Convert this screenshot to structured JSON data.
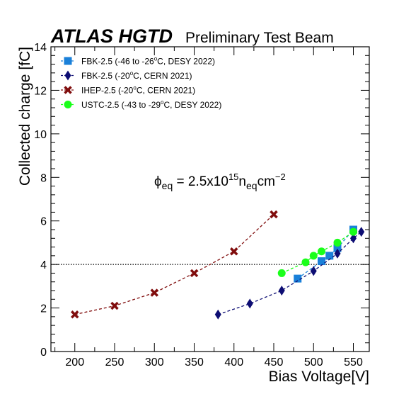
{
  "chart_data": {
    "type": "line",
    "title_bold": "ATLAS HGTD",
    "title_rest": "Preliminary Test Beam",
    "xlabel": "Bias Voltage[V]",
    "ylabel": "Collected charge [fC]",
    "xlim": [
      170,
      570
    ],
    "ylim": [
      0,
      14
    ],
    "x_ticks": [
      200,
      250,
      300,
      350,
      400,
      450,
      500,
      550
    ],
    "y_ticks": [
      0,
      2,
      4,
      6,
      8,
      10,
      12,
      14
    ],
    "reference_line": {
      "y": 4,
      "style": "dotted"
    },
    "annotation": {
      "symbol": "ϕ",
      "sub1": "eq",
      "mid": " = 2.5x10",
      "sup1": "15",
      "n": "n",
      "sub2": "eq",
      "unit": "cm",
      "sup2": "−2"
    },
    "legend_position": "top-left",
    "series": [
      {
        "name": "FBK-2.5 (-46 to -26°C, DESY 2022)",
        "name_parts": [
          "FBK-2.5 (-46 to -26",
          "o",
          "C, DESY 2022)"
        ],
        "marker": "square",
        "color": "#1a80d9",
        "x": [
          480,
          510,
          520,
          530,
          550
        ],
        "y": [
          3.35,
          4.15,
          4.4,
          4.75,
          5.6
        ]
      },
      {
        "name": "FBK-2.5 (-20°C, CERN 2021)",
        "name_parts": [
          "FBK-2.5 (-20",
          "o",
          "C, CERN 2021)"
        ],
        "marker": "diamond",
        "color": "#0d0d73",
        "x": [
          380,
          420,
          460,
          500,
          530,
          550,
          560
        ],
        "y": [
          1.7,
          2.2,
          2.8,
          3.7,
          4.5,
          5.2,
          5.5
        ]
      },
      {
        "name": "IHEP-2.5 (-20°C, CERN 2021)",
        "name_parts": [
          "IHEP-2.5 (-20",
          "o",
          "C, CERN 2021)"
        ],
        "marker": "cross",
        "color": "#800d0d",
        "x": [
          200,
          250,
          300,
          350,
          400,
          450
        ],
        "y": [
          1.7,
          2.1,
          2.7,
          3.6,
          4.6,
          6.3
        ]
      },
      {
        "name": "USTC-2.5 (-43 to -29°C, DESY 2022)",
        "name_parts": [
          "USTC-2.5 (-43 to -29",
          "o",
          "C, DESY 2022)"
        ],
        "marker": "circle",
        "color": "#1aff1a",
        "x": [
          460,
          490,
          500,
          510,
          530,
          550
        ],
        "y": [
          3.6,
          4.1,
          4.4,
          4.6,
          5.0,
          5.5
        ]
      }
    ]
  }
}
